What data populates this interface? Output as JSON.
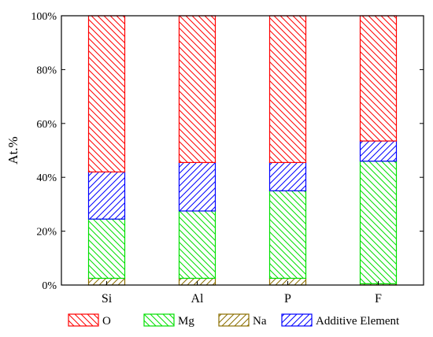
{
  "chart_data": {
    "type": "bar",
    "stacked": true,
    "categories": [
      "Si",
      "Al",
      "P",
      "F"
    ],
    "series": [
      {
        "name": "Na",
        "values": [
          2.5,
          2.5,
          2.5,
          0.5
        ],
        "color": "#8B6F00",
        "hatch": "forward-slash"
      },
      {
        "name": "Mg",
        "values": [
          22,
          25,
          32.5,
          45.5
        ],
        "color": "#00E000",
        "hatch": "back-slash"
      },
      {
        "name": "Additive Element",
        "values": [
          17.5,
          18,
          10.5,
          7.5
        ],
        "color": "#0000FF",
        "hatch": "forward-slash"
      },
      {
        "name": "O",
        "values": [
          58,
          54.5,
          54.5,
          46.5
        ],
        "color": "#FF0000",
        "hatch": "back-slash"
      }
    ],
    "legend_order": [
      "O",
      "Mg",
      "Na",
      "Additive Element"
    ],
    "ylabel": "At.%",
    "xlabel": "",
    "ylim": [
      0,
      100
    ],
    "yticks": [
      "0%",
      "20%",
      "40%",
      "60%",
      "80%",
      "100%"
    ],
    "legend_position": "bottom",
    "grid": false
  }
}
